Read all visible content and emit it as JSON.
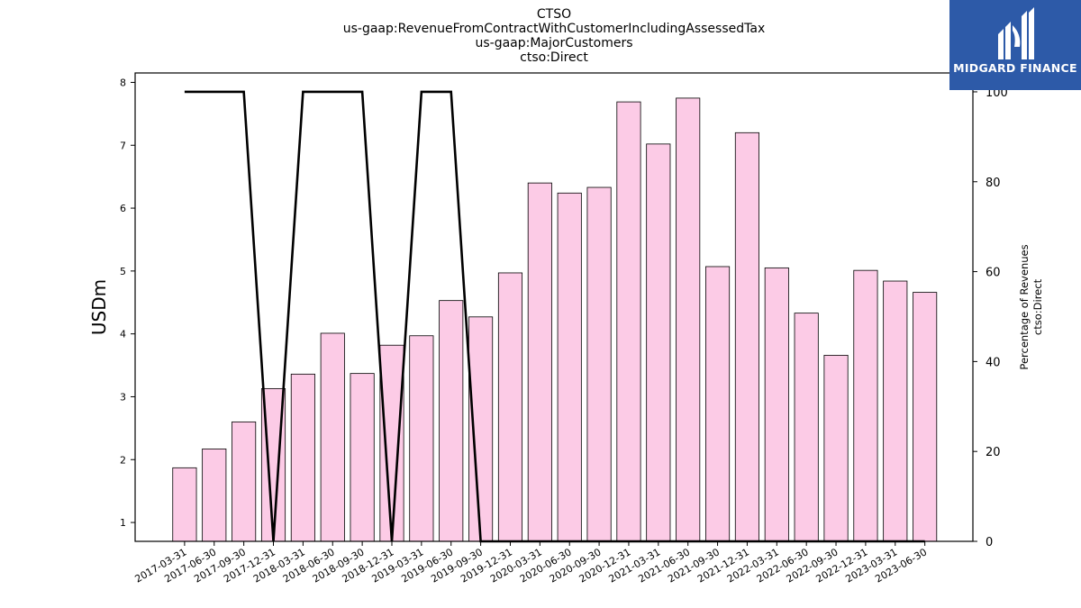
{
  "title_lines": [
    "CTSO",
    "us-gaap:RevenueFromContractWithCustomerIncludingAssessedTax",
    "us-gaap:MajorCustomers",
    "ctso:Direct"
  ],
  "logo": {
    "text": "MIDGARD FINANCE",
    "background": "#2d5aa8",
    "icon": "midgard-logo-icon"
  },
  "chart_data": {
    "type": "bar",
    "categories": [
      "2017-03-31",
      "2017-06-30",
      "2017-09-30",
      "2017-12-31",
      "2018-03-31",
      "2018-06-30",
      "2018-09-30",
      "2018-12-31",
      "2019-03-31",
      "2019-06-30",
      "2019-09-30",
      "2019-12-31",
      "2020-03-31",
      "2020-06-30",
      "2020-09-30",
      "2020-12-31",
      "2021-03-31",
      "2021-06-30",
      "2021-09-30",
      "2021-12-31",
      "2022-03-31",
      "2022-06-30",
      "2022-09-30",
      "2022-12-31",
      "2023-03-31",
      "2023-06-30"
    ],
    "series": [
      {
        "axis": "left",
        "type": "bar",
        "color": "#fccbe6",
        "values": [
          1.87,
          2.17,
          2.6,
          3.13,
          3.36,
          4.01,
          3.37,
          3.82,
          3.97,
          4.53,
          4.27,
          4.97,
          6.4,
          6.24,
          6.33,
          7.69,
          7.02,
          7.75,
          5.07,
          7.2,
          5.05,
          4.33,
          3.66,
          5.01,
          4.84,
          4.66
        ]
      },
      {
        "axis": "right",
        "type": "line",
        "color": "#000000",
        "values": [
          100,
          100,
          100,
          0,
          100,
          100,
          100,
          0,
          100,
          100,
          0,
          0,
          0,
          0,
          0,
          0,
          0,
          0,
          0,
          0,
          0,
          0,
          0,
          0,
          0,
          0
        ]
      }
    ],
    "ylabel": "USDm",
    "y2label_lines": [
      "Percentage of Revenues",
      "ctso:Direct"
    ],
    "ylim": [
      0.7,
      8.15
    ],
    "y_ticks": [
      1,
      2,
      3,
      4,
      5,
      6,
      7,
      8
    ],
    "y2lim": [
      0,
      104.2
    ],
    "y2_ticks": [
      0,
      20,
      40,
      60,
      80,
      100
    ],
    "grid": false
  }
}
